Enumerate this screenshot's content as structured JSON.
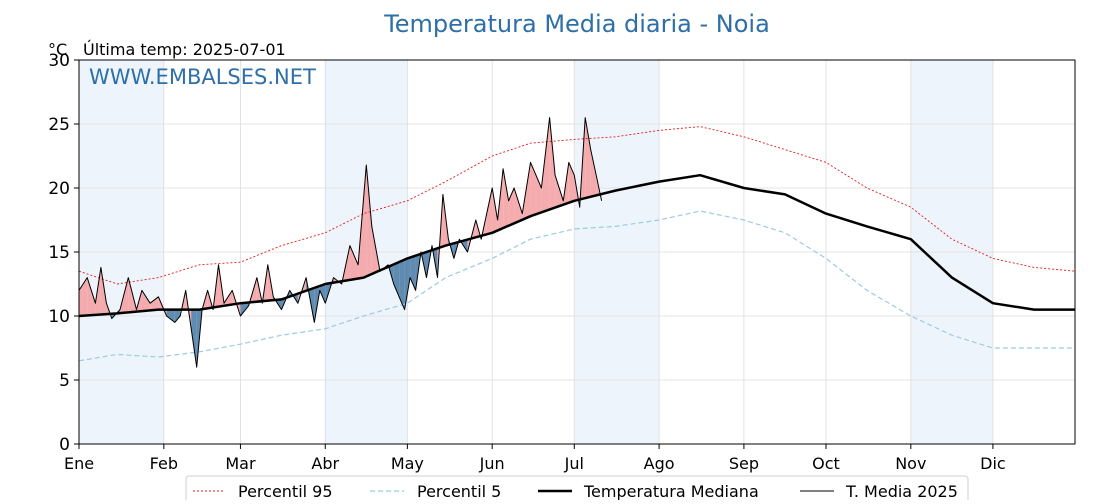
{
  "chart_data": {
    "type": "line",
    "title": "Temperatura Media diaria - Noia",
    "unit": "°C",
    "subtitle": "Última temp: 2025-07-01",
    "watermark": "WWW.EMBALSES.NET",
    "xlabel": "",
    "ylabel": "",
    "ylim": [
      0,
      30
    ],
    "yticks": [
      0,
      5,
      10,
      15,
      20,
      25,
      30
    ],
    "xlim_day": [
      1,
      365
    ],
    "month_ticks": [
      {
        "label": "Ene",
        "day": 1
      },
      {
        "label": "Feb",
        "day": 32
      },
      {
        "label": "Mar",
        "day": 60
      },
      {
        "label": "Abr",
        "day": 91
      },
      {
        "label": "May",
        "day": 121
      },
      {
        "label": "Jun",
        "day": 152
      },
      {
        "label": "Jul",
        "day": 182
      },
      {
        "label": "Ago",
        "day": 213
      },
      {
        "label": "Sep",
        "day": 244
      },
      {
        "label": "Oct",
        "day": 274
      },
      {
        "label": "Nov",
        "day": 305
      },
      {
        "label": "Dic",
        "day": 335
      }
    ],
    "shaded_bands": [
      [
        1,
        32
      ],
      [
        91,
        121
      ],
      [
        182,
        213
      ],
      [
        305,
        335
      ]
    ],
    "grid": true,
    "legend_position": "bottom",
    "legend": [
      "Percentil 95",
      "Percentil 5",
      "Temperatura Mediana",
      "T. Media 2025"
    ],
    "colors": {
      "p95": "#e41a1c",
      "p5": "#9ecae1",
      "median": "#000000",
      "current": "#000000",
      "above": "#f4a3a5",
      "below": "#4f7fa8",
      "band": "#eef4fb",
      "title": "#2e6fa8",
      "watermark": "#2e6fa8"
    },
    "series": [
      {
        "name": "Percentil 95",
        "style": "dotted-red",
        "points": [
          [
            1,
            13.5
          ],
          [
            15,
            12.5
          ],
          [
            30,
            13
          ],
          [
            45,
            14
          ],
          [
            60,
            14.2
          ],
          [
            75,
            15.5
          ],
          [
            91,
            16.5
          ],
          [
            105,
            18
          ],
          [
            121,
            19
          ],
          [
            135,
            20.5
          ],
          [
            152,
            22.5
          ],
          [
            166,
            23.5
          ],
          [
            182,
            23.8
          ],
          [
            197,
            24
          ],
          [
            213,
            24.5
          ],
          [
            228,
            24.8
          ],
          [
            244,
            24
          ],
          [
            259,
            23
          ],
          [
            274,
            22
          ],
          [
            289,
            20
          ],
          [
            305,
            18.5
          ],
          [
            320,
            16
          ],
          [
            335,
            14.5
          ],
          [
            350,
            13.8
          ],
          [
            365,
            13.5
          ]
        ]
      },
      {
        "name": "Percentil 5",
        "style": "dashed-lightblue",
        "points": [
          [
            1,
            6.5
          ],
          [
            15,
            7
          ],
          [
            30,
            6.8
          ],
          [
            45,
            7.2
          ],
          [
            60,
            7.8
          ],
          [
            75,
            8.5
          ],
          [
            91,
            9
          ],
          [
            105,
            10
          ],
          [
            121,
            11
          ],
          [
            135,
            13
          ],
          [
            152,
            14.5
          ],
          [
            166,
            16
          ],
          [
            182,
            16.8
          ],
          [
            197,
            17
          ],
          [
            213,
            17.5
          ],
          [
            228,
            18.2
          ],
          [
            244,
            17.5
          ],
          [
            259,
            16.5
          ],
          [
            274,
            14.5
          ],
          [
            289,
            12
          ],
          [
            305,
            10
          ],
          [
            320,
            8.5
          ],
          [
            335,
            7.5
          ],
          [
            350,
            7.5
          ],
          [
            365,
            7.5
          ]
        ]
      },
      {
        "name": "Temperatura Mediana",
        "style": "thick-black",
        "points": [
          [
            1,
            10
          ],
          [
            15,
            10.2
          ],
          [
            30,
            10.5
          ],
          [
            45,
            10.5
          ],
          [
            60,
            11
          ],
          [
            75,
            11.3
          ],
          [
            91,
            12.5
          ],
          [
            105,
            13
          ],
          [
            121,
            14.5
          ],
          [
            135,
            15.5
          ],
          [
            152,
            16.5
          ],
          [
            166,
            17.8
          ],
          [
            182,
            19
          ],
          [
            197,
            19.8
          ],
          [
            213,
            20.5
          ],
          [
            228,
            21
          ],
          [
            244,
            20
          ],
          [
            259,
            19.5
          ],
          [
            274,
            18
          ],
          [
            289,
            17
          ],
          [
            305,
            16
          ],
          [
            320,
            13
          ],
          [
            335,
            11
          ],
          [
            350,
            10.5
          ],
          [
            365,
            10.5
          ]
        ]
      },
      {
        "name": "T. Media 2025",
        "style": "thin-black",
        "points": [
          [
            1,
            12
          ],
          [
            4,
            13
          ],
          [
            7,
            11
          ],
          [
            9,
            13.8
          ],
          [
            11,
            11
          ],
          [
            13,
            9.8
          ],
          [
            16,
            10.5
          ],
          [
            19,
            13
          ],
          [
            22,
            10.5
          ],
          [
            24,
            12
          ],
          [
            27,
            11
          ],
          [
            30,
            11.5
          ],
          [
            33,
            10
          ],
          [
            36,
            9.5
          ],
          [
            38,
            10
          ],
          [
            40,
            12
          ],
          [
            42,
            9
          ],
          [
            44,
            6
          ],
          [
            46,
            10.5
          ],
          [
            48,
            12
          ],
          [
            50,
            10.5
          ],
          [
            52,
            14
          ],
          [
            54,
            11
          ],
          [
            57,
            12
          ],
          [
            60,
            10
          ],
          [
            63,
            10.8
          ],
          [
            66,
            13
          ],
          [
            68,
            11
          ],
          [
            70,
            14
          ],
          [
            72,
            11.5
          ],
          [
            75,
            10.5
          ],
          [
            78,
            12
          ],
          [
            81,
            11
          ],
          [
            84,
            13
          ],
          [
            87,
            9.5
          ],
          [
            89,
            12
          ],
          [
            91,
            11
          ],
          [
            94,
            13
          ],
          [
            97,
            12.5
          ],
          [
            100,
            15.5
          ],
          [
            103,
            14
          ],
          [
            106,
            21.8
          ],
          [
            108,
            17
          ],
          [
            111,
            13.5
          ],
          [
            114,
            14
          ],
          [
            116,
            12.5
          ],
          [
            118,
            11.5
          ],
          [
            120,
            10.5
          ],
          [
            122,
            13
          ],
          [
            124,
            12
          ],
          [
            126,
            15
          ],
          [
            128,
            13
          ],
          [
            130,
            15.5
          ],
          [
            132,
            13
          ],
          [
            134,
            19.5
          ],
          [
            136,
            16
          ],
          [
            138,
            14.5
          ],
          [
            140,
            16
          ],
          [
            143,
            15
          ],
          [
            146,
            17.5
          ],
          [
            148,
            16
          ],
          [
            150,
            18
          ],
          [
            152,
            20
          ],
          [
            154,
            17.5
          ],
          [
            156,
            21.5
          ],
          [
            158,
            19
          ],
          [
            160,
            20
          ],
          [
            163,
            18
          ],
          [
            166,
            22
          ],
          [
            168,
            21
          ],
          [
            170,
            20
          ],
          [
            173,
            25.5
          ],
          [
            175,
            21
          ],
          [
            178,
            19
          ],
          [
            180,
            22
          ],
          [
            182,
            21
          ],
          [
            184,
            18.5
          ],
          [
            186,
            25.5
          ],
          [
            188,
            23
          ],
          [
            190,
            21
          ],
          [
            192,
            19
          ]
        ]
      }
    ]
  }
}
